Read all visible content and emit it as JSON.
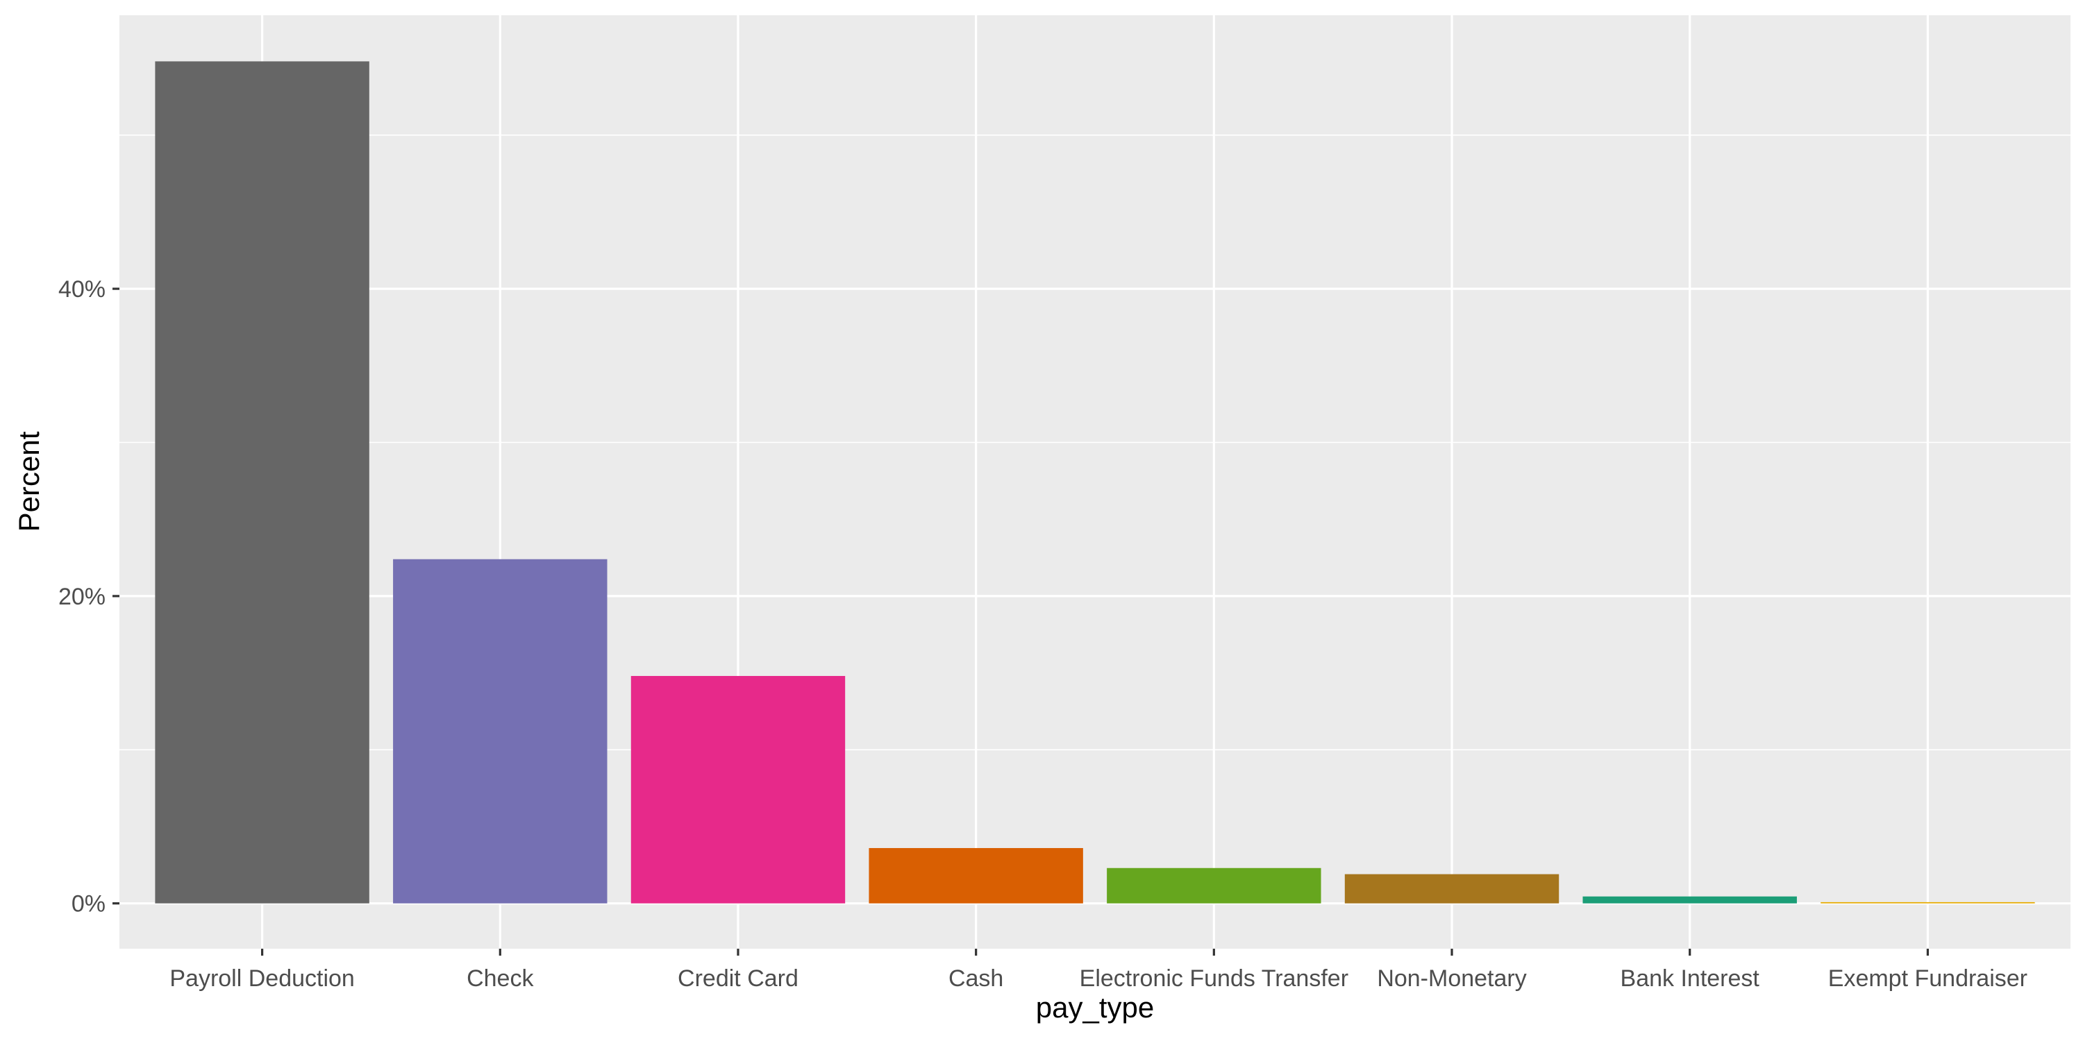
{
  "chart_data": {
    "type": "bar",
    "title": "",
    "xlabel": "pay_type",
    "ylabel": "Percent",
    "categories": [
      "Payroll Deduction",
      "Check",
      "Credit Card",
      "Cash",
      "Electronic Funds Transfer",
      "Non-Monetary",
      "Bank Interest",
      "Exempt Fundraiser"
    ],
    "values": [
      54.8,
      22.4,
      14.8,
      3.6,
      2.3,
      1.9,
      0.45,
      0.08
    ],
    "colors": [
      "#666666",
      "#7570B3",
      "#E7298A",
      "#D95F02",
      "#66A61E",
      "#A6761D",
      "#1B9E77",
      "#E6AB02"
    ],
    "ylim": [
      -2.95,
      57.8
    ],
    "yticks": [
      0,
      20,
      40
    ],
    "ytick_labels": [
      "0%",
      "20%",
      "40%"
    ],
    "grid": true,
    "legend": "none",
    "panel_background": "#EBEBEB"
  }
}
